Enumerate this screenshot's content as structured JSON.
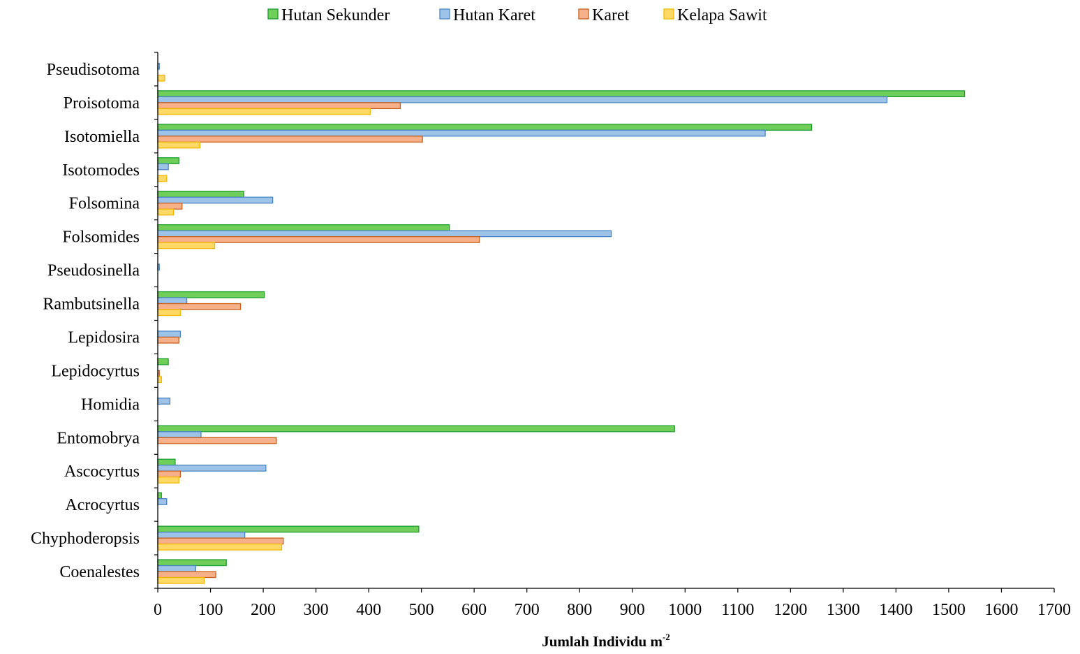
{
  "chart_data": {
    "type": "bar",
    "orientation": "horizontal",
    "categories": [
      "Pseudisotoma",
      "Proisotoma",
      "Isotomiella",
      "Isotomodes",
      "Folsomina",
      "Folsomides",
      "Pseudosinella",
      "Rambutsinella",
      "Lepidosira",
      "Lepidocyrtus",
      "Homidia",
      "Entomobrya",
      "Ascocyrtus",
      "Acrocyrtus",
      "Chyphoderopsis",
      "Coenalestes"
    ],
    "series": [
      {
        "name": "Hutan Sekunder",
        "color": "#6fcf5a",
        "stroke": "#1f9e2f",
        "values": [
          0,
          1530,
          1240,
          40,
          163,
          553,
          0,
          202,
          0,
          20,
          0,
          980,
          33,
          7,
          495,
          130
        ]
      },
      {
        "name": "Hutan Karet",
        "color": "#9ec3e8",
        "stroke": "#4a86c5",
        "values": [
          3,
          1383,
          1152,
          20,
          218,
          860,
          3,
          55,
          43,
          0,
          23,
          82,
          205,
          17,
          165,
          72
        ]
      },
      {
        "name": "Karet",
        "color": "#f6b08a",
        "stroke": "#c9611e",
        "values": [
          0,
          460,
          502,
          0,
          46,
          610,
          0,
          157,
          40,
          3,
          0,
          225,
          43,
          0,
          238,
          110
        ]
      },
      {
        "name": "Kelapa Sawit",
        "color": "#ffd966",
        "stroke": "#f2b800",
        "values": [
          13,
          403,
          80,
          17,
          30,
          108,
          0,
          43,
          0,
          7,
          0,
          0,
          40,
          0,
          235,
          88
        ]
      }
    ],
    "xlim": [
      0,
      1700
    ],
    "xticks": [
      0,
      100,
      200,
      300,
      400,
      500,
      600,
      700,
      800,
      900,
      1000,
      1100,
      1200,
      1300,
      1400,
      1500,
      1600,
      1700
    ],
    "xlabel": "Jumlah Individu m",
    "xlabel_superscript": "-2",
    "ylabel": "",
    "grid": false,
    "legend_position": "top"
  }
}
